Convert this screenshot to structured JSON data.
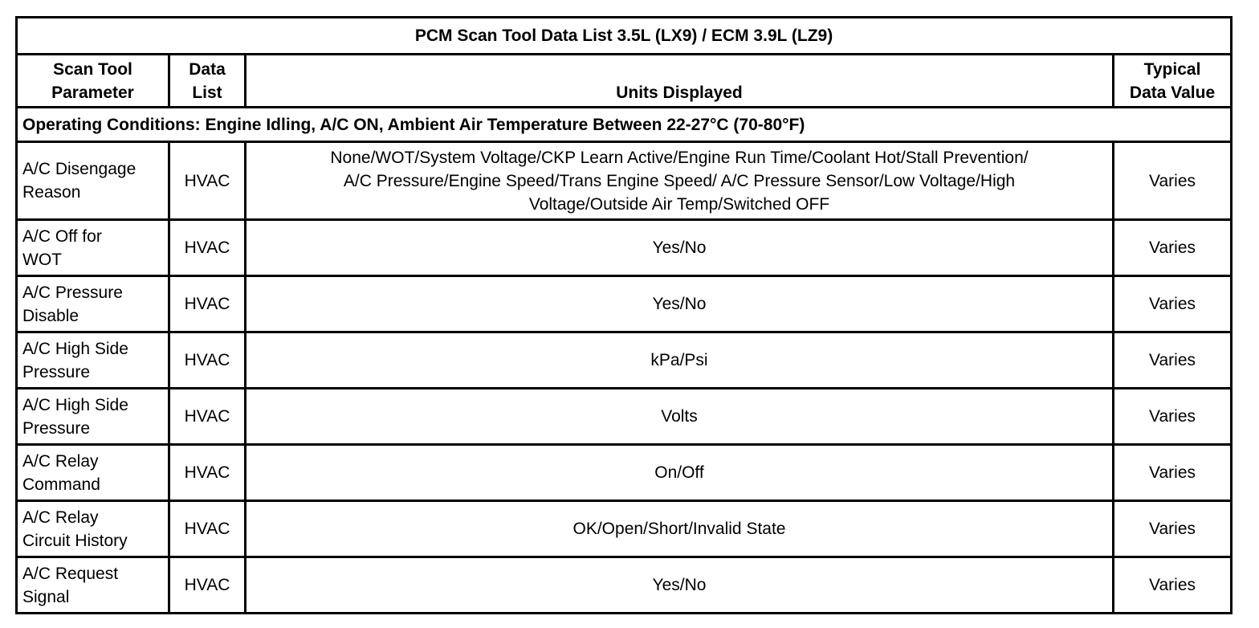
{
  "title": "PCM Scan Tool Data List 3.5L (LX9) / ECM 3.9L (LZ9)",
  "headers": {
    "parameter": [
      "Scan Tool",
      "Parameter"
    ],
    "data_list": [
      "Data",
      "List"
    ],
    "units": "Units Displayed",
    "typical": [
      "Typical",
      "Data Value"
    ]
  },
  "conditions": "Operating Conditions: Engine Idling, A/C ON, Ambient Air Temperature Between 22-27°C (70-80°F)",
  "rows": [
    {
      "param": [
        "A/C Disengage",
        "Reason"
      ],
      "list": "HVAC",
      "units": [
        "None/WOT/System Voltage/CKP Learn Active/Engine Run Time/Coolant Hot/Stall Prevention/",
        "A/C Pressure/Engine Speed/Trans Engine Speed/ A/C Pressure Sensor/Low Voltage/High",
        "Voltage/Outside Air Temp/Switched OFF"
      ],
      "value": "Varies"
    },
    {
      "param": [
        "A/C Off for",
        "WOT"
      ],
      "list": "HVAC",
      "units": [
        "Yes/No"
      ],
      "value": "Varies"
    },
    {
      "param": [
        "A/C Pressure",
        "Disable"
      ],
      "list": "HVAC",
      "units": [
        "Yes/No"
      ],
      "value": "Varies"
    },
    {
      "param": [
        "A/C High Side",
        "Pressure"
      ],
      "list": "HVAC",
      "units": [
        "kPa/Psi"
      ],
      "value": "Varies"
    },
    {
      "param": [
        "A/C High Side",
        "Pressure"
      ],
      "list": "HVAC",
      "units": [
        "Volts"
      ],
      "value": "Varies"
    },
    {
      "param": [
        "A/C Relay",
        "Command"
      ],
      "list": "HVAC",
      "units": [
        "On/Off"
      ],
      "value": "Varies"
    },
    {
      "param": [
        "A/C Relay",
        "Circuit History"
      ],
      "list": "HVAC",
      "units": [
        "OK/Open/Short/Invalid State"
      ],
      "value": "Varies"
    },
    {
      "param": [
        "A/C Request",
        "Signal"
      ],
      "list": "HVAC",
      "units": [
        "Yes/No"
      ],
      "value": "Varies"
    }
  ]
}
